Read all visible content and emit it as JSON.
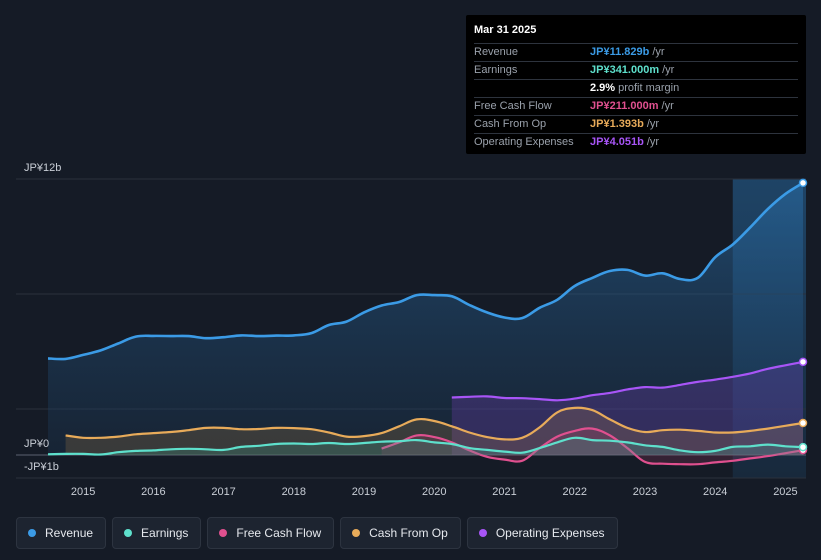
{
  "tooltip": {
    "date": "Mar 31 2025",
    "rows": [
      {
        "label": "Revenue",
        "value": "JP¥11.829b",
        "unit": "/yr",
        "color": "#3b9be6"
      },
      {
        "label": "Earnings",
        "value": "JP¥341.000m",
        "unit": "/yr",
        "color": "#5ee0cc"
      },
      {
        "label": "",
        "value": "2.9%",
        "unit": "profit margin",
        "color": "#ffffff"
      },
      {
        "label": "Free Cash Flow",
        "value": "JP¥211.000m",
        "unit": "/yr",
        "color": "#e0508f"
      },
      {
        "label": "Cash From Op",
        "value": "JP¥1.393b",
        "unit": "/yr",
        "color": "#e8ab5a"
      },
      {
        "label": "Operating Expenses",
        "value": "JP¥4.051b",
        "unit": "/yr",
        "color": "#a855f7"
      }
    ]
  },
  "legend": [
    {
      "label": "Revenue",
      "color": "#3b9be6"
    },
    {
      "label": "Earnings",
      "color": "#5ee0cc"
    },
    {
      "label": "Free Cash Flow",
      "color": "#e0508f"
    },
    {
      "label": "Cash From Op",
      "color": "#e8ab5a"
    },
    {
      "label": "Operating Expenses",
      "color": "#a855f7"
    }
  ],
  "chart_data": {
    "type": "area",
    "unit": "JP¥ billions",
    "y_label_top": "JP¥12b",
    "y_label_zero": "JP¥0",
    "y_label_bottom": "-JP¥1b",
    "ylim": [
      -1,
      12
    ],
    "xlim": [
      2014.5,
      2025.25
    ],
    "forecast_start": 2024.25,
    "x_ticks": [
      "2015",
      "2016",
      "2017",
      "2018",
      "2019",
      "2020",
      "2021",
      "2022",
      "2023",
      "2024",
      "2025"
    ],
    "series": [
      {
        "name": "Revenue",
        "color": "#3b9be6",
        "points": [
          [
            2014.5,
            4.2
          ],
          [
            2014.75,
            4.18
          ],
          [
            2015.0,
            4.35
          ],
          [
            2015.25,
            4.55
          ],
          [
            2015.5,
            4.85
          ],
          [
            2015.75,
            5.15
          ],
          [
            2016.0,
            5.18
          ],
          [
            2016.25,
            5.17
          ],
          [
            2016.5,
            5.17
          ],
          [
            2016.75,
            5.08
          ],
          [
            2017.0,
            5.12
          ],
          [
            2017.25,
            5.2
          ],
          [
            2017.5,
            5.17
          ],
          [
            2017.75,
            5.19
          ],
          [
            2018.0,
            5.2
          ],
          [
            2018.25,
            5.3
          ],
          [
            2018.5,
            5.65
          ],
          [
            2018.75,
            5.8
          ],
          [
            2019.0,
            6.2
          ],
          [
            2019.25,
            6.5
          ],
          [
            2019.5,
            6.65
          ],
          [
            2019.75,
            6.95
          ],
          [
            2020.0,
            6.95
          ],
          [
            2020.25,
            6.9
          ],
          [
            2020.5,
            6.52
          ],
          [
            2020.75,
            6.2
          ],
          [
            2021.0,
            5.98
          ],
          [
            2021.25,
            5.95
          ],
          [
            2021.5,
            6.4
          ],
          [
            2021.75,
            6.75
          ],
          [
            2022.0,
            7.35
          ],
          [
            2022.25,
            7.7
          ],
          [
            2022.5,
            8.0
          ],
          [
            2022.75,
            8.05
          ],
          [
            2023.0,
            7.8
          ],
          [
            2023.25,
            7.9
          ],
          [
            2023.5,
            7.65
          ],
          [
            2023.75,
            7.7
          ],
          [
            2024.0,
            8.6
          ],
          [
            2024.25,
            9.15
          ],
          [
            2024.5,
            9.9
          ],
          [
            2024.75,
            10.7
          ],
          [
            2025.0,
            11.35
          ],
          [
            2025.25,
            11.83
          ]
        ]
      },
      {
        "name": "Operating Expenses",
        "color": "#a855f7",
        "points": [
          [
            2020.25,
            2.5
          ],
          [
            2020.5,
            2.53
          ],
          [
            2020.75,
            2.55
          ],
          [
            2021.0,
            2.48
          ],
          [
            2021.25,
            2.47
          ],
          [
            2021.5,
            2.43
          ],
          [
            2021.75,
            2.38
          ],
          [
            2022.0,
            2.45
          ],
          [
            2022.25,
            2.6
          ],
          [
            2022.5,
            2.7
          ],
          [
            2022.75,
            2.85
          ],
          [
            2023.0,
            2.95
          ],
          [
            2023.25,
            2.93
          ],
          [
            2023.5,
            3.05
          ],
          [
            2023.75,
            3.18
          ],
          [
            2024.0,
            3.28
          ],
          [
            2024.25,
            3.4
          ],
          [
            2024.5,
            3.55
          ],
          [
            2024.75,
            3.75
          ],
          [
            2025.0,
            3.9
          ],
          [
            2025.25,
            4.05
          ]
        ]
      },
      {
        "name": "Cash From Op",
        "color": "#e8ab5a",
        "points": [
          [
            2014.75,
            0.85
          ],
          [
            2015.0,
            0.75
          ],
          [
            2015.25,
            0.75
          ],
          [
            2015.5,
            0.8
          ],
          [
            2015.75,
            0.9
          ],
          [
            2016.0,
            0.95
          ],
          [
            2016.25,
            1.0
          ],
          [
            2016.5,
            1.08
          ],
          [
            2016.75,
            1.18
          ],
          [
            2017.0,
            1.18
          ],
          [
            2017.25,
            1.12
          ],
          [
            2017.5,
            1.13
          ],
          [
            2017.75,
            1.18
          ],
          [
            2018.0,
            1.17
          ],
          [
            2018.25,
            1.12
          ],
          [
            2018.5,
            0.98
          ],
          [
            2018.75,
            0.8
          ],
          [
            2019.0,
            0.82
          ],
          [
            2019.25,
            0.95
          ],
          [
            2019.5,
            1.25
          ],
          [
            2019.75,
            1.55
          ],
          [
            2020.0,
            1.48
          ],
          [
            2020.25,
            1.25
          ],
          [
            2020.5,
            0.98
          ],
          [
            2020.75,
            0.78
          ],
          [
            2021.0,
            0.68
          ],
          [
            2021.25,
            0.75
          ],
          [
            2021.5,
            1.2
          ],
          [
            2021.75,
            1.85
          ],
          [
            2022.0,
            2.05
          ],
          [
            2022.25,
            1.95
          ],
          [
            2022.5,
            1.55
          ],
          [
            2022.75,
            1.18
          ],
          [
            2023.0,
            1.0
          ],
          [
            2023.25,
            1.08
          ],
          [
            2023.5,
            1.1
          ],
          [
            2023.75,
            1.05
          ],
          [
            2024.0,
            0.98
          ],
          [
            2024.25,
            0.98
          ],
          [
            2024.5,
            1.05
          ],
          [
            2024.75,
            1.15
          ],
          [
            2025.0,
            1.27
          ],
          [
            2025.25,
            1.39
          ]
        ]
      },
      {
        "name": "Free Cash Flow",
        "color": "#e0508f",
        "points": [
          [
            2019.25,
            0.28
          ],
          [
            2019.5,
            0.55
          ],
          [
            2019.75,
            0.85
          ],
          [
            2020.0,
            0.78
          ],
          [
            2020.25,
            0.55
          ],
          [
            2020.5,
            0.2
          ],
          [
            2020.75,
            -0.08
          ],
          [
            2021.0,
            -0.2
          ],
          [
            2021.25,
            -0.25
          ],
          [
            2021.5,
            0.3
          ],
          [
            2021.75,
            0.8
          ],
          [
            2022.0,
            1.05
          ],
          [
            2022.25,
            1.15
          ],
          [
            2022.5,
            0.85
          ],
          [
            2022.75,
            0.3
          ],
          [
            2023.0,
            -0.3
          ],
          [
            2023.25,
            -0.38
          ],
          [
            2023.5,
            -0.4
          ],
          [
            2023.75,
            -0.4
          ],
          [
            2024.0,
            -0.32
          ],
          [
            2024.25,
            -0.25
          ],
          [
            2024.5,
            -0.15
          ],
          [
            2024.75,
            -0.05
          ],
          [
            2025.0,
            0.08
          ],
          [
            2025.25,
            0.21
          ]
        ]
      },
      {
        "name": "Earnings",
        "color": "#5ee0cc",
        "points": [
          [
            2014.5,
            0.03
          ],
          [
            2014.75,
            0.05
          ],
          [
            2015.0,
            0.05
          ],
          [
            2015.25,
            0.02
          ],
          [
            2015.5,
            0.12
          ],
          [
            2015.75,
            0.18
          ],
          [
            2016.0,
            0.2
          ],
          [
            2016.25,
            0.25
          ],
          [
            2016.5,
            0.27
          ],
          [
            2016.75,
            0.25
          ],
          [
            2017.0,
            0.22
          ],
          [
            2017.25,
            0.35
          ],
          [
            2017.5,
            0.4
          ],
          [
            2017.75,
            0.48
          ],
          [
            2018.0,
            0.5
          ],
          [
            2018.25,
            0.48
          ],
          [
            2018.5,
            0.52
          ],
          [
            2018.75,
            0.48
          ],
          [
            2019.0,
            0.52
          ],
          [
            2019.25,
            0.58
          ],
          [
            2019.5,
            0.6
          ],
          [
            2019.75,
            0.65
          ],
          [
            2020.0,
            0.55
          ],
          [
            2020.25,
            0.48
          ],
          [
            2020.5,
            0.3
          ],
          [
            2020.75,
            0.22
          ],
          [
            2021.0,
            0.15
          ],
          [
            2021.25,
            0.1
          ],
          [
            2021.5,
            0.3
          ],
          [
            2021.75,
            0.55
          ],
          [
            2022.0,
            0.75
          ],
          [
            2022.25,
            0.65
          ],
          [
            2022.5,
            0.62
          ],
          [
            2022.75,
            0.55
          ],
          [
            2023.0,
            0.42
          ],
          [
            2023.25,
            0.35
          ],
          [
            2023.5,
            0.2
          ],
          [
            2023.75,
            0.12
          ],
          [
            2024.0,
            0.18
          ],
          [
            2024.25,
            0.35
          ],
          [
            2024.5,
            0.38
          ],
          [
            2024.75,
            0.45
          ],
          [
            2025.0,
            0.38
          ],
          [
            2025.25,
            0.34
          ]
        ]
      }
    ]
  }
}
